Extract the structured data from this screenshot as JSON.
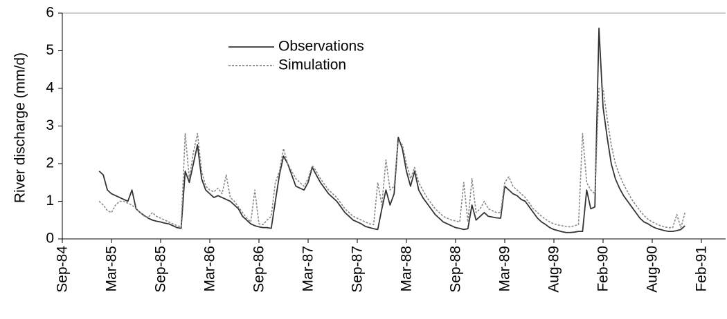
{
  "chart_data": {
    "type": "line",
    "y_label": "River discharge (mm/d)",
    "ylim": [
      0,
      6
    ],
    "yticks": [
      0,
      1,
      2,
      3,
      4,
      5,
      6
    ],
    "grid": false,
    "legend": "top",
    "categories": [
      "Sep-84",
      null,
      null,
      null,
      null,
      null,
      null,
      null,
      null,
      null,
      null,
      null,
      "Mar-85",
      null,
      null,
      null,
      null,
      null,
      null,
      null,
      null,
      null,
      null,
      null,
      "Sep-85",
      null,
      null,
      null,
      null,
      null,
      null,
      null,
      null,
      null,
      null,
      null,
      "Mar-86",
      null,
      null,
      null,
      null,
      null,
      null,
      null,
      null,
      null,
      null,
      null,
      "Sep-86",
      null,
      null,
      null,
      null,
      null,
      null,
      null,
      null,
      null,
      null,
      null,
      "Mar-87",
      null,
      null,
      null,
      null,
      null,
      null,
      null,
      null,
      null,
      null,
      null,
      "Sep-87",
      null,
      null,
      null,
      null,
      null,
      null,
      null,
      null,
      null,
      null,
      null,
      "Mar-88",
      null,
      null,
      null,
      null,
      null,
      null,
      null,
      null,
      null,
      null,
      null,
      "Sep-88",
      null,
      null,
      null,
      null,
      null,
      null,
      null,
      null,
      null,
      null,
      null,
      "Mar-89",
      null,
      null,
      null,
      null,
      null,
      null,
      null,
      null,
      null,
      null,
      null,
      "Aug-89",
      null,
      null,
      null,
      null,
      null,
      null,
      null,
      null,
      null,
      null,
      null,
      "Feb-90",
      null,
      null,
      null,
      null,
      null,
      null,
      null,
      null,
      null,
      null,
      null,
      "Aug-90",
      null,
      null,
      null,
      null,
      null,
      null,
      null,
      null,
      null,
      null,
      null,
      "Feb-91"
    ],
    "series": [
      {
        "name": "Observations",
        "color": "#333333",
        "style": "solid",
        "values": [
          null,
          null,
          null,
          null,
          null,
          null,
          null,
          null,
          null,
          1.8,
          1.7,
          1.3,
          1.2,
          1.15,
          1.1,
          1.05,
          1.0,
          1.3,
          0.8,
          0.7,
          0.62,
          0.55,
          0.5,
          0.47,
          0.45,
          0.42,
          0.4,
          0.35,
          0.3,
          0.28,
          1.8,
          1.5,
          2.0,
          2.5,
          1.6,
          1.3,
          1.2,
          1.1,
          1.15,
          1.1,
          1.05,
          1.0,
          0.9,
          0.8,
          0.6,
          0.5,
          0.4,
          0.35,
          0.32,
          0.3,
          0.3,
          0.28,
          1.0,
          1.7,
          2.2,
          2.0,
          1.7,
          1.4,
          1.35,
          1.3,
          1.5,
          1.9,
          1.7,
          1.5,
          1.35,
          1.2,
          1.1,
          1.0,
          0.85,
          0.7,
          0.6,
          0.5,
          0.45,
          0.4,
          0.33,
          0.3,
          0.27,
          0.25,
          0.8,
          1.3,
          0.9,
          1.2,
          2.7,
          2.4,
          1.8,
          1.4,
          1.8,
          1.3,
          1.1,
          0.95,
          0.8,
          0.65,
          0.55,
          0.45,
          0.4,
          0.35,
          0.3,
          0.28,
          0.25,
          0.27,
          0.9,
          0.5,
          0.6,
          0.7,
          0.6,
          0.58,
          0.56,
          0.55,
          1.4,
          1.3,
          1.2,
          1.15,
          1.05,
          1.0,
          0.85,
          0.7,
          0.55,
          0.45,
          0.38,
          0.3,
          0.25,
          0.22,
          0.19,
          0.17,
          0.17,
          0.18,
          0.2,
          0.2,
          1.3,
          0.8,
          0.85,
          5.6,
          3.5,
          2.7,
          2.0,
          1.6,
          1.35,
          1.15,
          1.0,
          0.85,
          0.7,
          0.55,
          0.45,
          0.4,
          0.33,
          0.28,
          0.25,
          0.22,
          0.2,
          0.2,
          0.22,
          0.25,
          0.35,
          null,
          null,
          null,
          null
        ]
      },
      {
        "name": "Simulation",
        "color": "#888888",
        "style": "dashed",
        "values": [
          null,
          null,
          null,
          null,
          null,
          null,
          null,
          null,
          null,
          1.0,
          0.9,
          0.75,
          0.7,
          0.9,
          1.0,
          1.0,
          0.95,
          0.9,
          0.8,
          0.7,
          0.6,
          0.58,
          0.7,
          0.6,
          0.55,
          0.5,
          0.45,
          0.4,
          0.35,
          0.32,
          2.8,
          1.6,
          2.3,
          2.8,
          1.8,
          1.4,
          1.3,
          1.25,
          1.35,
          1.2,
          1.7,
          1.1,
          1.0,
          0.85,
          0.7,
          0.55,
          0.45,
          1.3,
          0.4,
          0.38,
          0.5,
          0.6,
          1.5,
          1.8,
          2.4,
          2.0,
          1.8,
          1.6,
          1.5,
          1.4,
          1.6,
          1.95,
          1.8,
          1.6,
          1.45,
          1.3,
          1.2,
          1.1,
          0.95,
          0.8,
          0.7,
          0.6,
          0.55,
          0.5,
          0.45,
          0.4,
          0.38,
          1.5,
          0.9,
          2.1,
          1.3,
          1.4,
          2.6,
          2.5,
          2.0,
          1.6,
          1.9,
          1.5,
          1.3,
          1.1,
          0.95,
          0.8,
          0.7,
          0.6,
          0.55,
          0.5,
          0.48,
          0.45,
          1.5,
          0.45,
          1.6,
          0.7,
          0.8,
          1.0,
          0.8,
          0.75,
          0.7,
          0.7,
          1.5,
          1.65,
          1.4,
          1.3,
          1.2,
          1.1,
          0.95,
          0.8,
          0.7,
          0.6,
          0.52,
          0.45,
          0.4,
          0.37,
          0.35,
          0.33,
          0.32,
          0.35,
          0.38,
          2.8,
          1.5,
          1.3,
          1.2,
          4.0,
          4.0,
          3.2,
          2.5,
          2.0,
          1.7,
          1.45,
          1.25,
          1.05,
          0.9,
          0.75,
          0.62,
          0.52,
          0.45,
          0.4,
          0.35,
          0.32,
          0.3,
          0.3,
          0.65,
          0.3,
          0.7,
          null,
          null,
          null,
          null
        ]
      }
    ]
  }
}
